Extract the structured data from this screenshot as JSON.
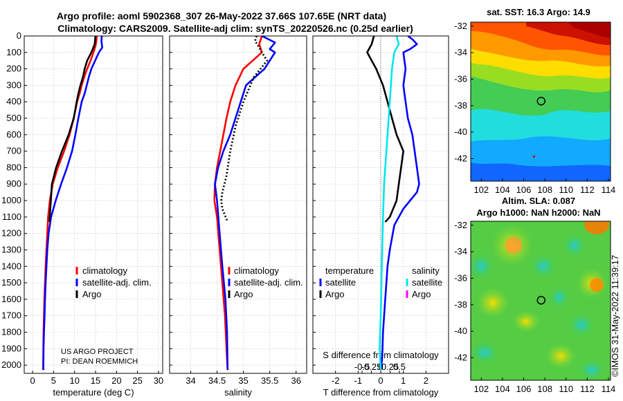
{
  "header": {
    "line1": "Argo profile: aoml 5902368_307 26-May-2022 37.66S 107.65E (NRT data)",
    "line2": "Climatology: CARS2009. Satellite-adj clim: synTS_20220526.nc (0.25d earlier)"
  },
  "credit": {
    "line1": "US ARGO PROJECT",
    "line2": "PI: DEAN ROEMMICH"
  },
  "side_stamp": "©IMOS 31-May-2022 11:39:17",
  "colors": {
    "climatology": "#ff0000",
    "satellite": "#0000ff",
    "argo": "#000000",
    "sat_salinity": "#00e5ee",
    "argo_salinity": "#ff00ff"
  },
  "chart_data": [
    {
      "type": "line",
      "xlabel": "temperature (deg C)",
      "xlim": [
        -2,
        31
      ],
      "ylim": [
        2050,
        0
      ],
      "xticks": [
        0,
        5,
        10,
        15,
        20,
        25,
        30
      ],
      "yticks": [
        0,
        100,
        200,
        300,
        400,
        500,
        600,
        700,
        800,
        900,
        1000,
        1100,
        1200,
        1300,
        1400,
        1500,
        1600,
        1700,
        1800,
        1900,
        2000
      ],
      "legend": [
        "climatology",
        "satellite-adj. clim.",
        "Argo"
      ],
      "legend_position": "lower-right",
      "series": [
        {
          "name": "climatology",
          "style": "solid",
          "x": [
            15.3,
            15.2,
            15.0,
            14.5,
            13.8,
            13.0,
            12.3,
            11.7,
            11.2,
            10.6,
            9.8,
            8.8,
            7.5,
            6.0,
            4.8,
            4.1,
            3.7,
            3.5,
            3.3,
            3.1,
            2.95,
            2.8,
            2.7,
            2.6,
            2.55,
            2.5
          ],
          "y": [
            0,
            30,
            60,
            100,
            150,
            200,
            250,
            300,
            350,
            400,
            500,
            600,
            700,
            800,
            900,
            1000,
            1100,
            1200,
            1300,
            1400,
            1500,
            1600,
            1700,
            1800,
            1900,
            2030
          ]
        },
        {
          "name": "satellite-adj. clim.",
          "style": "solid",
          "x": [
            16.5,
            16.4,
            16.6,
            15.8,
            14.9,
            14.0,
            13.4,
            12.9,
            12.4,
            11.7,
            10.9,
            10.2,
            9.4,
            8.2,
            6.8,
            5.5,
            4.4,
            3.8,
            3.5,
            3.3,
            3.1,
            2.95,
            2.85,
            2.7,
            2.6,
            2.55
          ],
          "y": [
            0,
            30,
            70,
            100,
            150,
            200,
            250,
            300,
            350,
            400,
            500,
            600,
            700,
            800,
            900,
            1000,
            1100,
            1200,
            1300,
            1400,
            1500,
            1600,
            1700,
            1800,
            1900,
            2030
          ]
        },
        {
          "name": "Argo",
          "style": "solid",
          "x": [
            15.0,
            14.9,
            14.8,
            14.0,
            13.0,
            12.4,
            12.0,
            11.4,
            10.9,
            10.5,
            9.8,
            8.6,
            7.0,
            5.6,
            4.6,
            4.0
          ],
          "y": [
            0,
            20,
            50,
            100,
            150,
            200,
            250,
            300,
            350,
            400,
            500,
            600,
            700,
            800,
            900,
            1130
          ]
        }
      ]
    },
    {
      "type": "line",
      "xlabel": "salinity",
      "xlim": [
        33.6,
        36.2
      ],
      "ylim": [
        2050,
        0
      ],
      "xticks": [
        34,
        34.5,
        35,
        35.5,
        36
      ],
      "legend": [
        "climatology",
        "satellite-adj. clim.",
        "Argo"
      ],
      "legend_position": "lower-right",
      "series": [
        {
          "name": "climatology",
          "style": "solid",
          "x": [
            35.35,
            35.3,
            35.35,
            35.0,
            34.85,
            34.75,
            34.68,
            34.62,
            34.56,
            34.5,
            34.46,
            34.45,
            34.5,
            34.55,
            34.6,
            34.65,
            34.68,
            34.7
          ],
          "y": [
            0,
            50,
            100,
            200,
            300,
            400,
            500,
            600,
            700,
            800,
            900,
            1000,
            1100,
            1300,
            1500,
            1700,
            1900,
            2030
          ]
        },
        {
          "name": "satellite-adj. clim.",
          "style": "solid",
          "x": [
            35.35,
            35.6,
            35.5,
            35.6,
            35.4,
            35.05,
            34.95,
            34.85,
            34.75,
            34.62,
            34.52,
            34.46,
            34.5,
            34.55,
            34.6,
            34.66,
            34.69,
            34.7
          ],
          "y": [
            0,
            40,
            80,
            100,
            200,
            300,
            400,
            500,
            600,
            700,
            800,
            900,
            1000,
            1200,
            1400,
            1600,
            1800,
            2030
          ]
        },
        {
          "name": "Argo",
          "style": "dotted",
          "x": [
            35.25,
            35.22,
            35.3,
            35.35,
            35.45,
            35.2,
            35.0,
            34.85,
            34.75,
            34.68,
            34.6,
            34.58,
            34.6,
            34.7
          ],
          "y": [
            0,
            30,
            70,
            100,
            150,
            250,
            400,
            550,
            700,
            850,
            950,
            1000,
            1050,
            1130
          ]
        }
      ]
    },
    {
      "type": "line",
      "xlabel": "T difference from climatology",
      "x2label": "S difference from climatology",
      "xlim": [
        -3,
        3
      ],
      "ylim": [
        2050,
        0
      ],
      "xticks": [
        -2,
        -1,
        0,
        1,
        2
      ],
      "x2ticks": [
        -0.5,
        -0.25,
        0,
        0.25,
        0.5
      ],
      "legend_groups": [
        {
          "title": "temperature",
          "items": [
            "satellite",
            "Argo"
          ]
        },
        {
          "title": "salinity",
          "items": [
            "satellite",
            "Argo"
          ]
        }
      ],
      "legend_position": "lower-right",
      "series": [
        {
          "name": "temperature satellite",
          "x": [
            1.2,
            1.4,
            1.6,
            1.3,
            1.0,
            1.1,
            1.0,
            1.1,
            1.2,
            1.4,
            1.5,
            1.6,
            1.7,
            1.6,
            1.3,
            1.0,
            0.6,
            0.4,
            0.3,
            0.25,
            0.2,
            0.15,
            0.1,
            0.08,
            0.05,
            0.0
          ],
          "y": [
            0,
            20,
            50,
            80,
            100,
            200,
            300,
            400,
            500,
            600,
            700,
            800,
            900,
            950,
            1000,
            1050,
            1150,
            1300,
            1400,
            1500,
            1600,
            1700,
            1800,
            1900,
            1980,
            2030
          ]
        },
        {
          "name": "temperature Argo",
          "x": [
            -0.3,
            -0.4,
            -0.6,
            -0.2,
            0.1,
            0.3,
            0.5,
            0.7,
            1.0,
            0.9,
            0.8,
            0.7,
            0.4,
            0.2
          ],
          "y": [
            0,
            50,
            100,
            200,
            300,
            400,
            500,
            600,
            700,
            800,
            900,
            1000,
            1100,
            1130
          ]
        },
        {
          "name": "salinity satellite",
          "x": [
            0.7,
            0.8,
            0.6,
            0.5,
            0.4,
            0.25,
            0.15,
            0.1,
            0.05,
            0.0,
            -0.05,
            0.0
          ],
          "y": [
            0,
            50,
            100,
            200,
            400,
            700,
            900,
            1100,
            1400,
            1700,
            1900,
            2030
          ]
        }
      ]
    },
    {
      "type": "heatmap",
      "title": "sat. SST: 16.3 Argo: 14.9",
      "xticks": [
        102,
        104,
        106,
        108,
        110,
        112,
        114
      ],
      "yticks": [
        -32,
        -34,
        -36,
        -38,
        -40,
        -42
      ],
      "marker": {
        "lon": 107.65,
        "lat": -37.66
      }
    },
    {
      "type": "heatmap",
      "title_line1": "Altim. SLA: 0.087",
      "title_line2": "Argo h1000: NaN h2000: NaN",
      "xticks": [
        102,
        104,
        106,
        108,
        110,
        112,
        114
      ],
      "yticks": [
        -32,
        -34,
        -36,
        -38,
        -40,
        -42
      ],
      "marker": {
        "lon": 107.65,
        "lat": -37.66
      }
    }
  ]
}
